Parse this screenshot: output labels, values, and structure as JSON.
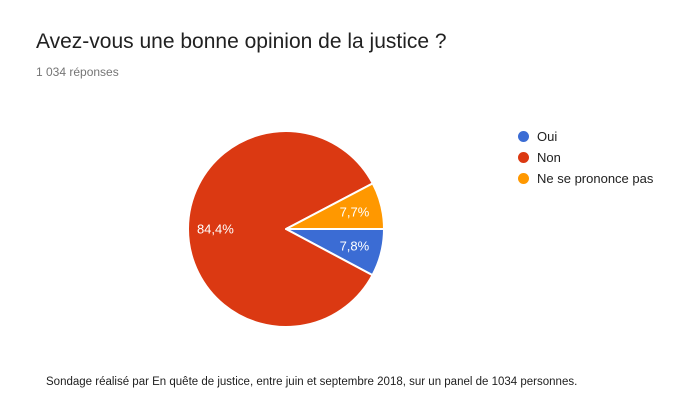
{
  "header": {
    "title": "Avez-vous une bonne opinion de la justice ?",
    "responses_count": "1 034 réponses"
  },
  "chart_data": {
    "type": "pie",
    "title": "Avez-vous une bonne opinion de la justice ?",
    "categories": [
      "Oui",
      "Non",
      "Ne se prononce pas"
    ],
    "values": [
      7.8,
      84.4,
      7.7
    ],
    "slice_labels": [
      "7,8%",
      "84,4%",
      "7,7%"
    ],
    "colors": [
      "#3B6CD4",
      "#DB3912",
      "#FF9800"
    ],
    "slice_label_color": "#ffffff",
    "separator_color": "#ffffff",
    "start_angle_deg_from_east": 0,
    "direction": "clockwise",
    "legend_position": "right"
  },
  "footer": {
    "text": "Sondage réalisé par En quête de justice, entre juin et septembre 2018, sur un panel de 1034 personnes."
  }
}
